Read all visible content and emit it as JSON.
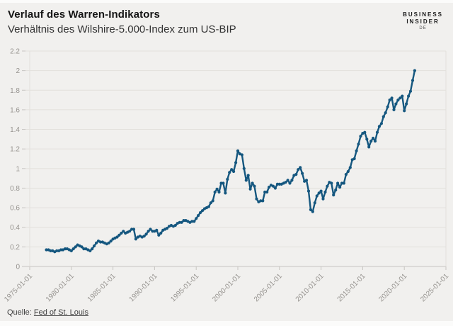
{
  "header": {
    "title": "Verlauf des Warren-Indikators",
    "subtitle": "Verhältnis des Wilshire-5.000-Index zum US-BIP"
  },
  "logo": {
    "line1": "BUSINESS",
    "line2": "INSIDER",
    "line3": "DE"
  },
  "footer": {
    "source_label": "Quelle:",
    "source_link_text": "Fed of St. Louis"
  },
  "colors": {
    "background": "#f1f0ee",
    "edge": "#fbfbfa",
    "grid": "#e2e0dc",
    "axis_line": "#c7c5c1",
    "axis_text": "#96938f",
    "line": "#15577f",
    "title_text": "#151515",
    "subtitle_text": "#333333",
    "footer_text": "#3f3f3f"
  },
  "chart_data": {
    "type": "line",
    "title": "Verlauf des Warren-Indikators",
    "subtitle": "Verhältnis des Wilshire-5.000-Index zum US-BIP",
    "source": "Fed of St. Louis",
    "grid": "horizontal",
    "legend": "none",
    "marker": "circle",
    "xlabel": "",
    "ylabel": "",
    "ylim": [
      0,
      2.2
    ],
    "x_range_years": [
      1975,
      2025
    ],
    "y_ticks": [
      0,
      0.2,
      0.4,
      0.6,
      0.8,
      1,
      1.2,
      1.4,
      1.6,
      1.8,
      2,
      2.2
    ],
    "y_tick_labels": [
      "0",
      "0.2",
      "0.4",
      "0.6",
      "0.8",
      "1",
      "1.2",
      "1.4",
      "1.6",
      "1.8",
      "2",
      "2.2"
    ],
    "x_tick_labels": [
      "1975-01-01",
      "1980-01-01",
      "1985-01-01",
      "1990-01-01",
      "1995-01-01",
      "2000-01-01",
      "2005-01-01",
      "2010-01-01",
      "2015-01-01",
      "2020-01-01",
      "2025-01-01"
    ],
    "series": [
      {
        "name": "Wilshire-5000-Index / US-BIP",
        "points": [
          [
            "1977-01-01",
            0.17
          ],
          [
            "1977-04-01",
            0.17
          ],
          [
            "1977-07-01",
            0.16
          ],
          [
            "1977-10-01",
            0.16
          ],
          [
            "1978-01-01",
            0.15
          ],
          [
            "1978-04-01",
            0.16
          ],
          [
            "1978-07-01",
            0.16
          ],
          [
            "1978-10-01",
            0.17
          ],
          [
            "1979-01-01",
            0.17
          ],
          [
            "1979-04-01",
            0.18
          ],
          [
            "1979-07-01",
            0.18
          ],
          [
            "1979-10-01",
            0.17
          ],
          [
            "1980-01-01",
            0.16
          ],
          [
            "1980-04-01",
            0.18
          ],
          [
            "1980-07-01",
            0.2
          ],
          [
            "1980-10-01",
            0.22
          ],
          [
            "1981-01-01",
            0.21
          ],
          [
            "1981-04-01",
            0.2
          ],
          [
            "1981-07-01",
            0.18
          ],
          [
            "1981-10-01",
            0.18
          ],
          [
            "1982-01-01",
            0.17
          ],
          [
            "1982-04-01",
            0.16
          ],
          [
            "1982-07-01",
            0.18
          ],
          [
            "1982-10-01",
            0.21
          ],
          [
            "1983-01-01",
            0.24
          ],
          [
            "1983-04-01",
            0.26
          ],
          [
            "1983-07-01",
            0.25
          ],
          [
            "1983-10-01",
            0.25
          ],
          [
            "1984-01-01",
            0.24
          ],
          [
            "1984-04-01",
            0.23
          ],
          [
            "1984-07-01",
            0.24
          ],
          [
            "1984-10-01",
            0.26
          ],
          [
            "1985-01-01",
            0.28
          ],
          [
            "1985-04-01",
            0.29
          ],
          [
            "1985-07-01",
            0.3
          ],
          [
            "1985-10-01",
            0.32
          ],
          [
            "1986-01-01",
            0.34
          ],
          [
            "1986-04-01",
            0.36
          ],
          [
            "1986-07-01",
            0.34
          ],
          [
            "1986-10-01",
            0.35
          ],
          [
            "1987-01-01",
            0.36
          ],
          [
            "1987-04-01",
            0.38
          ],
          [
            "1987-07-01",
            0.38
          ],
          [
            "1987-10-01",
            0.28
          ],
          [
            "1988-01-01",
            0.3
          ],
          [
            "1988-04-01",
            0.31
          ],
          [
            "1988-07-01",
            0.3
          ],
          [
            "1988-10-01",
            0.31
          ],
          [
            "1989-01-01",
            0.33
          ],
          [
            "1989-04-01",
            0.36
          ],
          [
            "1989-07-01",
            0.38
          ],
          [
            "1989-10-01",
            0.36
          ],
          [
            "1990-01-01",
            0.36
          ],
          [
            "1990-04-01",
            0.37
          ],
          [
            "1990-07-01",
            0.32
          ],
          [
            "1990-10-01",
            0.34
          ],
          [
            "1991-01-01",
            0.37
          ],
          [
            "1991-04-01",
            0.38
          ],
          [
            "1991-07-01",
            0.39
          ],
          [
            "1991-10-01",
            0.41
          ],
          [
            "1992-01-01",
            0.42
          ],
          [
            "1992-04-01",
            0.41
          ],
          [
            "1992-07-01",
            0.42
          ],
          [
            "1992-10-01",
            0.44
          ],
          [
            "1993-01-01",
            0.45
          ],
          [
            "1993-04-01",
            0.45
          ],
          [
            "1993-07-01",
            0.47
          ],
          [
            "1993-10-01",
            0.47
          ],
          [
            "1994-01-01",
            0.46
          ],
          [
            "1994-04-01",
            0.45
          ],
          [
            "1994-07-01",
            0.46
          ],
          [
            "1994-10-01",
            0.46
          ],
          [
            "1995-01-01",
            0.49
          ],
          [
            "1995-04-01",
            0.52
          ],
          [
            "1995-07-01",
            0.55
          ],
          [
            "1995-10-01",
            0.57
          ],
          [
            "1996-01-01",
            0.59
          ],
          [
            "1996-04-01",
            0.6
          ],
          [
            "1996-07-01",
            0.61
          ],
          [
            "1996-10-01",
            0.65
          ],
          [
            "1997-01-01",
            0.67
          ],
          [
            "1997-04-01",
            0.76
          ],
          [
            "1997-07-01",
            0.79
          ],
          [
            "1997-10-01",
            0.76
          ],
          [
            "1998-01-01",
            0.85
          ],
          [
            "1998-04-01",
            0.85
          ],
          [
            "1998-07-01",
            0.75
          ],
          [
            "1998-10-01",
            0.89
          ],
          [
            "1999-01-01",
            0.96
          ],
          [
            "1999-04-01",
            0.99
          ],
          [
            "1999-07-01",
            0.97
          ],
          [
            "1999-10-01",
            1.06
          ],
          [
            "2000-01-01",
            1.18
          ],
          [
            "2000-04-01",
            1.15
          ],
          [
            "2000-07-01",
            1.14
          ],
          [
            "2000-10-01",
            1.0
          ],
          [
            "2001-01-01",
            0.88
          ],
          [
            "2001-04-01",
            0.93
          ],
          [
            "2001-07-01",
            0.79
          ],
          [
            "2001-10-01",
            0.85
          ],
          [
            "2002-01-01",
            0.82
          ],
          [
            "2002-04-01",
            0.69
          ],
          [
            "2002-07-01",
            0.66
          ],
          [
            "2002-10-01",
            0.67
          ],
          [
            "2003-01-01",
            0.67
          ],
          [
            "2003-04-01",
            0.76
          ],
          [
            "2003-07-01",
            0.76
          ],
          [
            "2003-10-01",
            0.81
          ],
          [
            "2004-01-01",
            0.83
          ],
          [
            "2004-04-01",
            0.82
          ],
          [
            "2004-07-01",
            0.8
          ],
          [
            "2004-10-01",
            0.84
          ],
          [
            "2005-01-01",
            0.84
          ],
          [
            "2005-04-01",
            0.84
          ],
          [
            "2005-07-01",
            0.85
          ],
          [
            "2005-10-01",
            0.86
          ],
          [
            "2006-01-01",
            0.88
          ],
          [
            "2006-04-01",
            0.85
          ],
          [
            "2006-07-01",
            0.88
          ],
          [
            "2006-10-01",
            0.93
          ],
          [
            "2007-01-01",
            0.94
          ],
          [
            "2007-04-01",
            0.99
          ],
          [
            "2007-07-01",
            1.01
          ],
          [
            "2007-10-01",
            0.95
          ],
          [
            "2008-01-01",
            0.87
          ],
          [
            "2008-04-01",
            0.88
          ],
          [
            "2008-07-01",
            0.77
          ],
          [
            "2008-10-01",
            0.58
          ],
          [
            "2009-01-01",
            0.56
          ],
          [
            "2009-04-01",
            0.65
          ],
          [
            "2009-07-01",
            0.72
          ],
          [
            "2009-10-01",
            0.75
          ],
          [
            "2010-01-01",
            0.77
          ],
          [
            "2010-04-01",
            0.69
          ],
          [
            "2010-07-01",
            0.76
          ],
          [
            "2010-10-01",
            0.82
          ],
          [
            "2011-01-01",
            0.86
          ],
          [
            "2011-04-01",
            0.85
          ],
          [
            "2011-07-01",
            0.73
          ],
          [
            "2011-10-01",
            0.78
          ],
          [
            "2012-01-01",
            0.85
          ],
          [
            "2012-04-01",
            0.81
          ],
          [
            "2012-07-01",
            0.85
          ],
          [
            "2012-10-01",
            0.85
          ],
          [
            "2013-01-01",
            0.94
          ],
          [
            "2013-04-01",
            0.97
          ],
          [
            "2013-07-01",
            1.01
          ],
          [
            "2013-10-01",
            1.09
          ],
          [
            "2014-01-01",
            1.1
          ],
          [
            "2014-04-01",
            1.18
          ],
          [
            "2014-07-01",
            1.25
          ],
          [
            "2014-10-01",
            1.33
          ],
          [
            "2015-01-01",
            1.36
          ],
          [
            "2015-04-01",
            1.37
          ],
          [
            "2015-07-01",
            1.3
          ],
          [
            "2015-10-01",
            1.22
          ],
          [
            "2016-01-01",
            1.28
          ],
          [
            "2016-04-01",
            1.31
          ],
          [
            "2016-07-01",
            1.28
          ],
          [
            "2016-10-01",
            1.37
          ],
          [
            "2017-01-01",
            1.43
          ],
          [
            "2017-04-01",
            1.46
          ],
          [
            "2017-07-01",
            1.53
          ],
          [
            "2017-10-01",
            1.57
          ],
          [
            "2018-01-01",
            1.63
          ],
          [
            "2018-04-01",
            1.7
          ],
          [
            "2018-07-01",
            1.72
          ],
          [
            "2018-10-01",
            1.6
          ],
          [
            "2019-01-01",
            1.66
          ],
          [
            "2019-04-01",
            1.7
          ],
          [
            "2019-07-01",
            1.72
          ],
          [
            "2019-10-01",
            1.74
          ],
          [
            "2020-01-01",
            1.59
          ],
          [
            "2020-04-01",
            1.66
          ],
          [
            "2020-07-01",
            1.74
          ],
          [
            "2020-10-01",
            1.79
          ],
          [
            "2021-01-01",
            1.9
          ],
          [
            "2021-04-01",
            2.0
          ]
        ]
      }
    ]
  }
}
